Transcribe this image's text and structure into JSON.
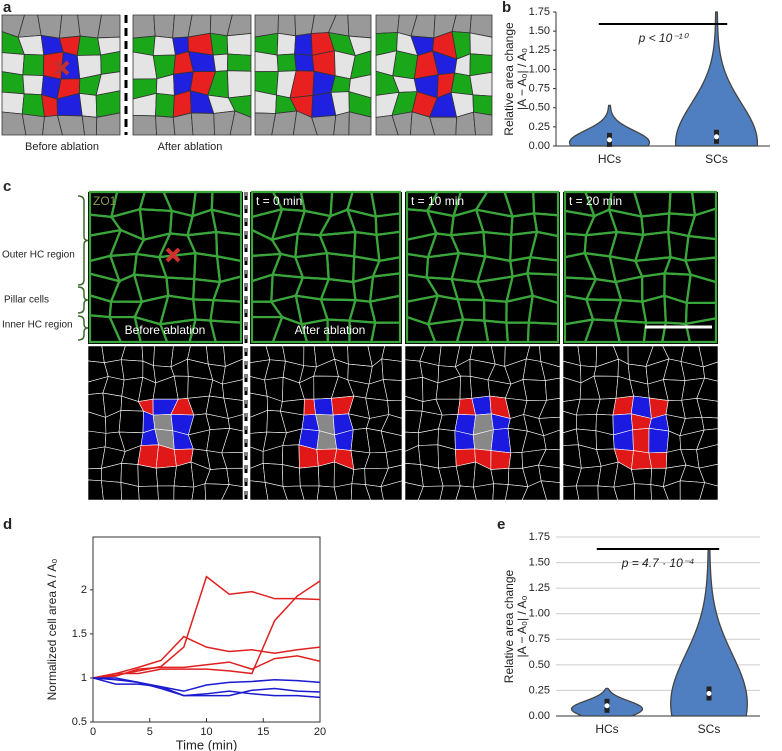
{
  "figure": {
    "panel_labels": [
      "a",
      "b",
      "c",
      "d",
      "e"
    ],
    "a": {
      "captions": [
        "Before ablation",
        "After ablation"
      ]
    },
    "c": {
      "stain": "ZO1",
      "regions": [
        "Outer HC region",
        "Pillar cells",
        "Inner HC region"
      ],
      "times": [
        "t = 0 min",
        "t = 10 min",
        "t = 20 min"
      ],
      "captions": [
        "Before ablation",
        "After ablation"
      ]
    }
  },
  "chart_data": [
    {
      "type": "violin",
      "ylabel": [
        "Relative area change",
        "|A − A₀| / A₀"
      ],
      "categories": [
        "HCs",
        "SCs"
      ],
      "values": [
        0.08,
        0.12
      ],
      "max": [
        0.53,
        1.75
      ],
      "color": "#4f7fc0",
      "ylim": [
        0,
        1.75
      ],
      "yticks": [
        {
          "value": 0,
          "label": "0.00"
        },
        {
          "value": 0.25,
          "label": "0.25"
        },
        {
          "value": 0.5,
          "label": "0.50"
        },
        {
          "value": 0.75,
          "label": "0.75"
        },
        {
          "value": 1,
          "label": "1.00"
        },
        {
          "value": 1.25,
          "label": "1.25"
        },
        {
          "value": 1.5,
          "label": "1.50"
        },
        {
          "value": 1.75,
          "label": "1.75"
        }
      ],
      "annotation": "p < 10⁻¹⁰",
      "grid": false
    },
    {
      "type": "line",
      "xlabel": "Time (min)",
      "ylabel": "Normalized cell area A / A₀",
      "x": [
        0,
        2,
        4,
        6,
        8,
        10,
        12,
        14,
        16,
        18,
        20
      ],
      "series": [
        {
          "color": "#e02020",
          "values": [
            1,
            1.03,
            1.08,
            1.13,
            1.35,
            2.15,
            1.95,
            1.98,
            1.9,
            1.9,
            1.89
          ]
        },
        {
          "color": "#e02020",
          "values": [
            1,
            1.05,
            1.05,
            1.1,
            1.1,
            1.1,
            1.08,
            1.05,
            1.65,
            1.93,
            2.1
          ]
        },
        {
          "color": "#e02020",
          "values": [
            1,
            1.05,
            1.12,
            1.2,
            1.47,
            1.35,
            1.3,
            1.32,
            1.28,
            1.32,
            1.35
          ]
        },
        {
          "color": "#e02020",
          "values": [
            1,
            1.02,
            1.1,
            1.12,
            1.12,
            1.15,
            1.18,
            1.1,
            1.22,
            1.25,
            1.19
          ]
        },
        {
          "color": "#1a1ad0",
          "values": [
            1,
            0.93,
            0.93,
            0.9,
            0.85,
            0.92,
            0.95,
            0.96,
            0.98,
            0.97,
            0.95
          ]
        },
        {
          "color": "#1a1ad0",
          "values": [
            1,
            0.98,
            0.95,
            0.9,
            0.8,
            0.82,
            0.85,
            0.82,
            0.8,
            0.8,
            0.78
          ]
        },
        {
          "color": "#1a1ad0",
          "values": [
            1,
            1,
            0.95,
            0.88,
            0.8,
            0.8,
            0.8,
            0.86,
            0.88,
            0.85,
            0.84
          ]
        }
      ],
      "xlim": [
        0,
        20
      ],
      "xticks": [
        0,
        5,
        10,
        15,
        20
      ],
      "ylim": [
        0.5,
        2.6
      ],
      "yticks": [
        0.5,
        1,
        1.5,
        2
      ],
      "grid": false
    },
    {
      "type": "violin",
      "ylabel": [
        "Relative area change",
        "|A − A₀| / A₀"
      ],
      "categories": [
        "HCs",
        "SCs"
      ],
      "values": [
        0.1,
        0.22
      ],
      "max": [
        0.27,
        1.63
      ],
      "color": "#4f7fc0",
      "ylim": [
        0,
        1.75
      ],
      "yticks": [
        {
          "value": 0,
          "label": "0.00"
        },
        {
          "value": 0.25,
          "label": "0.25"
        },
        {
          "value": 0.5,
          "label": "0.50"
        },
        {
          "value": 0.75,
          "label": "0.75"
        },
        {
          "value": 1,
          "label": "1.00"
        },
        {
          "value": 1.25,
          "label": "1.25"
        },
        {
          "value": 1.5,
          "label": "1.50"
        },
        {
          "value": 1.75,
          "label": "1.75"
        }
      ],
      "annotation": "p = 4.7 · 10⁻⁴",
      "grid": true
    }
  ]
}
